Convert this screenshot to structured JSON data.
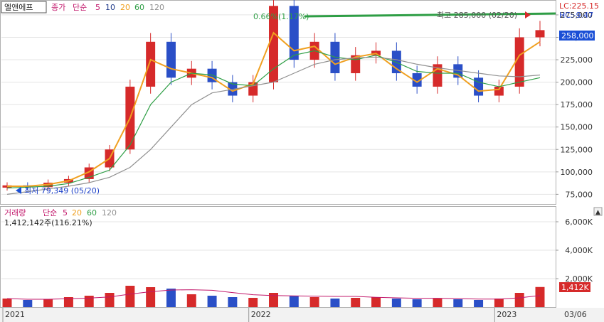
{
  "price_panel": {
    "legend": {
      "stock_name": "엘앤에프",
      "price_type": "종가",
      "ma_type": "단순",
      "ma_periods": [
        "5",
        "10",
        "20",
        "60",
        "120"
      ]
    },
    "lc_label": "LC:225.15",
    "hc_label": "HC:-9.47",
    "current_price_label": "258,000",
    "high_annotation": "최고 285,000 (02/20)",
    "high_change_annotation": "0.66%(1.17%)",
    "low_annotation": "최저 79,349 (05/20)"
  },
  "volume_panel": {
    "legend": {
      "title": "거래량",
      "ma_type": "단순",
      "ma_periods": [
        "5",
        "20",
        "60",
        "120"
      ]
    },
    "volume_readout": "1,412,142주(116.21%)",
    "current_volume_label": "1,412K"
  },
  "x_axis": {
    "labels": [
      "2021",
      "2022",
      "2023"
    ],
    "date_label": "03/06"
  },
  "colors": {
    "up": "#d62a2a",
    "down": "#2a4fc7",
    "ma5": "#c2186b",
    "ma10": "#1f3a8a",
    "ma20": "#f0a020",
    "ma60": "#2e9e45",
    "ma120": "#909090",
    "high_line": "#2e9e45",
    "badge_bg": "#1a4fd6"
  },
  "chart_data": [
    {
      "type": "line",
      "title": "엘앤에프",
      "ylim": [
        65000,
        290000
      ],
      "y_ticks": [
        75000,
        100000,
        125000,
        150000,
        175000,
        200000,
        225000,
        250000,
        275000
      ],
      "x": [
        "2021-01",
        "2021-02",
        "2021-03",
        "2021-04",
        "2021-05",
        "2021-06",
        "2021-07",
        "2021-08",
        "2021-09",
        "2021-10",
        "2021-11",
        "2021-12",
        "2022-01",
        "2022-02",
        "2022-03",
        "2022-04",
        "2022-05",
        "2022-06",
        "2022-07",
        "2022-08",
        "2022-09",
        "2022-10",
        "2022-11",
        "2022-12",
        "2023-01",
        "2023-02",
        "2023-03"
      ],
      "series": [
        {
          "name": "종가",
          "values": [
            85000,
            83000,
            88000,
            92000,
            105000,
            125000,
            195000,
            245000,
            205000,
            215000,
            200000,
            185000,
            200000,
            285000,
            225000,
            245000,
            210000,
            230000,
            235000,
            210000,
            195000,
            220000,
            205000,
            185000,
            195000,
            250000,
            258000
          ]
        },
        {
          "name": "20",
          "values": [
            84000,
            84000,
            86000,
            90000,
            100000,
            115000,
            160000,
            225000,
            215000,
            210000,
            205000,
            190000,
            198000,
            255000,
            235000,
            240000,
            220000,
            228000,
            232000,
            215000,
            200000,
            215000,
            208000,
            190000,
            192000,
            230000,
            245000
          ]
        },
        {
          "name": "60",
          "values": [
            82000,
            83000,
            84000,
            87000,
            94000,
            102000,
            130000,
            175000,
            200000,
            210000,
            208000,
            198000,
            196000,
            215000,
            230000,
            235000,
            228000,
            225000,
            230000,
            222000,
            212000,
            210000,
            210000,
            200000,
            195000,
            200000,
            205000
          ]
        },
        {
          "name": "120",
          "values": [
            75000,
            78000,
            81000,
            84000,
            88000,
            94000,
            105000,
            125000,
            150000,
            175000,
            188000,
            192000,
            196000,
            200000,
            210000,
            220000,
            225000,
            227000,
            228000,
            225000,
            220000,
            216000,
            213000,
            210000,
            207000,
            206000,
            208000
          ]
        }
      ]
    },
    {
      "type": "bar",
      "title": "거래량",
      "ylim": [
        0,
        7000
      ],
      "y_ticks": [
        2000,
        4000,
        6000
      ],
      "y_tick_labels": [
        "2,000K",
        "4,000K",
        "6,000K"
      ],
      "x": [
        "2021-01",
        "2021-02",
        "2021-03",
        "2021-04",
        "2021-05",
        "2021-06",
        "2021-07",
        "2021-08",
        "2021-09",
        "2021-10",
        "2021-11",
        "2021-12",
        "2022-01",
        "2022-02",
        "2022-03",
        "2022-04",
        "2022-05",
        "2022-06",
        "2022-07",
        "2022-08",
        "2022-09",
        "2022-10",
        "2022-11",
        "2022-12",
        "2023-01",
        "2023-02",
        "2023-03"
      ],
      "values": [
        600,
        500,
        550,
        700,
        800,
        1000,
        1500,
        1400,
        1300,
        900,
        800,
        700,
        650,
        1000,
        800,
        700,
        600,
        650,
        700,
        600,
        550,
        600,
        550,
        500,
        600,
        1000,
        1412
      ]
    }
  ]
}
